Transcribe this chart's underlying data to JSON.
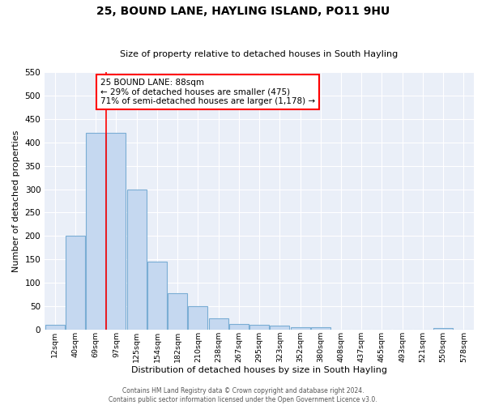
{
  "title": "25, BOUND LANE, HAYLING ISLAND, PO11 9HU",
  "subtitle": "Size of property relative to detached houses in South Hayling",
  "xlabel": "Distribution of detached houses by size in South Hayling",
  "ylabel": "Number of detached properties",
  "bar_labels": [
    "12sqm",
    "40sqm",
    "69sqm",
    "97sqm",
    "125sqm",
    "154sqm",
    "182sqm",
    "210sqm",
    "238sqm",
    "267sqm",
    "295sqm",
    "323sqm",
    "352sqm",
    "380sqm",
    "408sqm",
    "437sqm",
    "465sqm",
    "493sqm",
    "521sqm",
    "550sqm",
    "578sqm"
  ],
  "bar_values": [
    10,
    200,
    420,
    420,
    300,
    145,
    78,
    50,
    25,
    13,
    10,
    8,
    5,
    5,
    0,
    0,
    0,
    0,
    0,
    3,
    0
  ],
  "bar_color": "#c5d8f0",
  "bar_edgecolor": "#7aadd4",
  "bar_linewidth": 0.8,
  "vline_x_index": 2.5,
  "vline_color": "red",
  "vline_linewidth": 1.2,
  "annotation_text": "25 BOUND LANE: 88sqm\n← 29% of detached houses are smaller (475)\n71% of semi-detached houses are larger (1,178) →",
  "ylim": [
    0,
    550
  ],
  "yticks": [
    0,
    50,
    100,
    150,
    200,
    250,
    300,
    350,
    400,
    450,
    500,
    550
  ],
  "bg_color": "#eaeff8",
  "grid_color": "#ffffff",
  "footer_line1": "Contains HM Land Registry data © Crown copyright and database right 2024.",
  "footer_line2": "Contains public sector information licensed under the Open Government Licence v3.0."
}
